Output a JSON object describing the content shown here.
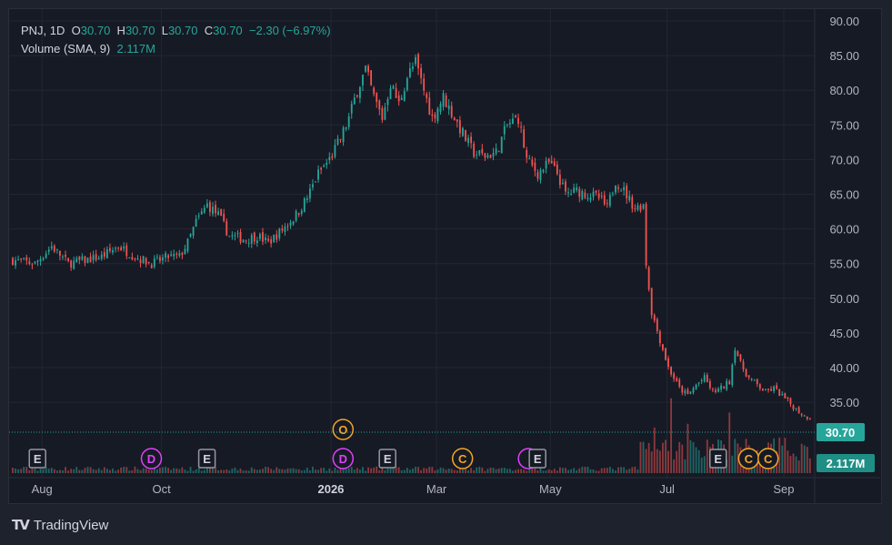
{
  "legend": {
    "symbol": "PNJ, 1D",
    "o_label": "O",
    "o_value": "30.70",
    "h_label": "H",
    "h_value": "30.70",
    "l_label": "L",
    "l_value": "30.70",
    "c_label": "C",
    "c_value": "30.70",
    "change": "−2.30 (−6.97%)",
    "volume_label": "Volume (SMA, 9)",
    "volume_value": "2.117M"
  },
  "price_badge": "30.70",
  "volume_badge": "2.117M",
  "brand": "TradingView",
  "colors": {
    "up": "#26a69a",
    "down": "#ef5350",
    "event_orange": "#f5a623",
    "event_pink": "#e040fb",
    "event_gray": "#9598a1"
  },
  "chart_data": {
    "type": "candlestick",
    "y_ticks": [
      "35.00",
      "40.00",
      "45.00",
      "50.00",
      "55.00",
      "60.00",
      "65.00",
      "70.00",
      "75.00",
      "80.00",
      "85.00",
      "90.00"
    ],
    "ylim": [
      31.5,
      90
    ],
    "x_ticks": [
      {
        "label": "Aug",
        "bold": false,
        "index": 4
      },
      {
        "label": "Oct",
        "bold": false,
        "index": 47
      },
      {
        "label": "2026",
        "bold": true,
        "index": 108
      },
      {
        "label": "Mar",
        "bold": false,
        "index": 146
      },
      {
        "label": "May",
        "bold": false,
        "index": 187
      },
      {
        "label": "Jul",
        "bold": false,
        "index": 229
      },
      {
        "label": "Sep",
        "bold": false,
        "index": 271
      }
    ],
    "last_price": 30.7,
    "events": [
      {
        "label": "E",
        "kind": "gray",
        "index": 4
      },
      {
        "label": "D",
        "kind": "pink",
        "index": 45
      },
      {
        "label": "E",
        "kind": "gray",
        "index": 65
      },
      {
        "label": "O",
        "kind": "orange",
        "index": 114,
        "upper": true
      },
      {
        "label": "D",
        "kind": "pink",
        "index": 114
      },
      {
        "label": "E",
        "kind": "gray",
        "index": 130
      },
      {
        "label": "C",
        "kind": "orange",
        "index": 157
      },
      {
        "label": "E",
        "kind": "gray",
        "index": 184,
        "pink_behind": true
      },
      {
        "label": "E",
        "kind": "gray",
        "index": 249
      },
      {
        "label": "C",
        "kind": "orange",
        "index": 260
      },
      {
        "label": "C",
        "kind": "orange",
        "index": 267
      }
    ],
    "close_path": [
      [
        0,
        55.5
      ],
      [
        8,
        55
      ],
      [
        14,
        57.5
      ],
      [
        20,
        55
      ],
      [
        26,
        55.5
      ],
      [
        32,
        56
      ],
      [
        38,
        57.5
      ],
      [
        44,
        56
      ],
      [
        50,
        55
      ],
      [
        56,
        56
      ],
      [
        60,
        56
      ],
      [
        63,
        58
      ],
      [
        66,
        61
      ],
      [
        70,
        63.5
      ],
      [
        74,
        62
      ],
      [
        78,
        59
      ],
      [
        84,
        58.5
      ],
      [
        88,
        59
      ],
      [
        92,
        58
      ],
      [
        96,
        59.5
      ],
      [
        102,
        62
      ],
      [
        106,
        64.5
      ],
      [
        110,
        68
      ],
      [
        114,
        70
      ],
      [
        118,
        73
      ],
      [
        121,
        76
      ],
      [
        124,
        80
      ],
      [
        127,
        83
      ],
      [
        130,
        79
      ],
      [
        133,
        76
      ],
      [
        136,
        81
      ],
      [
        139,
        78
      ],
      [
        142,
        82
      ],
      [
        145,
        84
      ],
      [
        148,
        80
      ],
      [
        151,
        76
      ],
      [
        155,
        79
      ],
      [
        159,
        76
      ],
      [
        163,
        73
      ],
      [
        166,
        71
      ],
      [
        170,
        70.5
      ],
      [
        174,
        71
      ],
      [
        178,
        75
      ],
      [
        182,
        76
      ],
      [
        185,
        70
      ],
      [
        189,
        68
      ],
      [
        193,
        69.5
      ],
      [
        196,
        68
      ],
      [
        199,
        65
      ],
      [
        203,
        65.5
      ],
      [
        207,
        65
      ],
      [
        211,
        64.5
      ],
      [
        214,
        63
      ],
      [
        217,
        67
      ],
      [
        220,
        65.5
      ],
      [
        224,
        63
      ],
      [
        227,
        63.5
      ],
      [
        228,
        55
      ],
      [
        230,
        48
      ],
      [
        233,
        44
      ],
      [
        236,
        40
      ],
      [
        240,
        37
      ],
      [
        243,
        36
      ],
      [
        246,
        37.5
      ],
      [
        249,
        38.5
      ],
      [
        252,
        36.5
      ],
      [
        255,
        37
      ],
      [
        258,
        38
      ],
      [
        260,
        43
      ],
      [
        262,
        40.5
      ],
      [
        265,
        38.5
      ],
      [
        268,
        37.5
      ],
      [
        271,
        36.5
      ],
      [
        274,
        37
      ],
      [
        278,
        35.5
      ],
      [
        282,
        34
      ],
      [
        285,
        33
      ],
      [
        287,
        32.8
      ]
    ],
    "volume": [
      {
        "from": 0,
        "to": 225,
        "level": 0.04
      },
      {
        "from": 226,
        "to": 287,
        "level": 0.22
      }
    ],
    "volume_spikes": [
      {
        "index": 231,
        "level": 0.83
      },
      {
        "index": 237,
        "level": 0.6
      },
      {
        "index": 243,
        "level": 0.72
      },
      {
        "index": 245,
        "level": 0.55
      },
      {
        "index": 258,
        "level": 0.62
      }
    ]
  }
}
